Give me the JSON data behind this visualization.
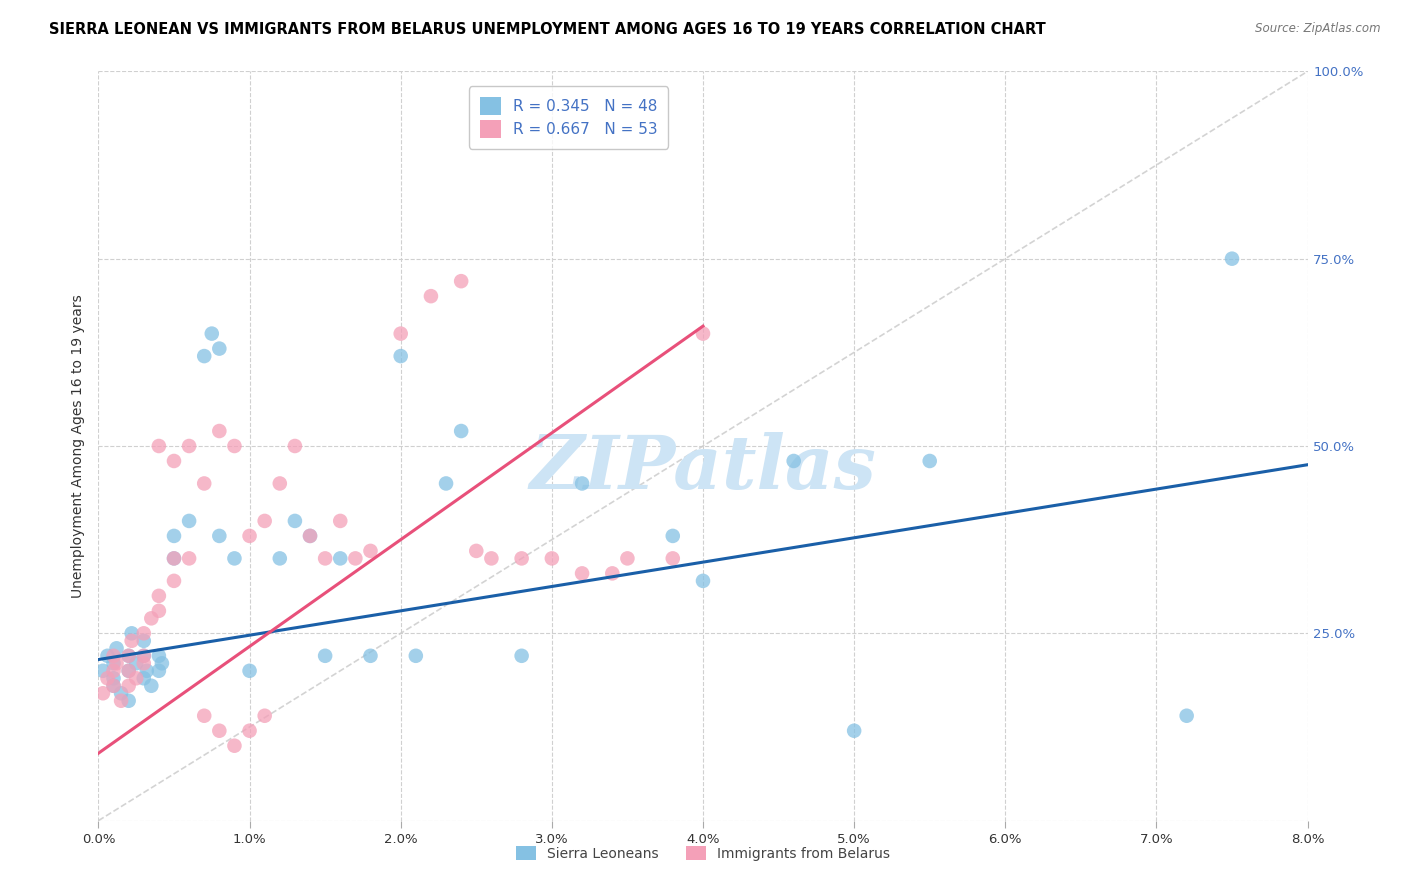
{
  "title": "SIERRA LEONEAN VS IMMIGRANTS FROM BELARUS UNEMPLOYMENT AMONG AGES 16 TO 19 YEARS CORRELATION CHART",
  "source": "Source: ZipAtlas.com",
  "ylabel": "Unemployment Among Ages 16 to 19 years",
  "xlim": [
    0.0,
    0.08
  ],
  "ylim": [
    0.0,
    1.0
  ],
  "xticks": [
    0.0,
    0.01,
    0.02,
    0.03,
    0.04,
    0.05,
    0.06,
    0.07,
    0.08
  ],
  "xticklabels": [
    "0.0%",
    "1.0%",
    "2.0%",
    "3.0%",
    "4.0%",
    "5.0%",
    "6.0%",
    "7.0%",
    "8.0%"
  ],
  "yticks": [
    0.0,
    0.25,
    0.5,
    0.75,
    1.0
  ],
  "yticklabels": [
    "",
    "25.0%",
    "50.0%",
    "75.0%",
    "100.0%"
  ],
  "legend_labels": [
    "Sierra Leoneans",
    "Immigrants from Belarus"
  ],
  "series1_R": 0.345,
  "series1_N": 48,
  "series2_R": 0.667,
  "series2_N": 53,
  "color_blue": "#85c1e3",
  "color_pink": "#f4a0b8",
  "line_blue": "#1a5fa8",
  "line_pink": "#e8507a",
  "line_diagonal": "#cccccc",
  "watermark": "ZIPatlas",
  "watermark_color": "#cde4f5",
  "title_fontsize": 10.5,
  "axis_label_fontsize": 10,
  "tick_fontsize": 9.5,
  "right_tick_color": "#4472c4",
  "blue_line_x": [
    0.0,
    0.08
  ],
  "blue_line_y": [
    0.215,
    0.475
  ],
  "pink_line_x": [
    0.0,
    0.04
  ],
  "pink_line_y": [
    0.09,
    0.66
  ],
  "sierra_x": [
    0.0003,
    0.0006,
    0.001,
    0.001,
    0.001,
    0.0012,
    0.0015,
    0.002,
    0.002,
    0.002,
    0.0022,
    0.0025,
    0.003,
    0.003,
    0.003,
    0.0032,
    0.0035,
    0.004,
    0.004,
    0.0042,
    0.005,
    0.005,
    0.006,
    0.007,
    0.0075,
    0.008,
    0.008,
    0.009,
    0.01,
    0.012,
    0.013,
    0.014,
    0.015,
    0.016,
    0.018,
    0.02,
    0.021,
    0.023,
    0.024,
    0.028,
    0.032,
    0.038,
    0.04,
    0.046,
    0.05,
    0.055,
    0.072,
    0.075
  ],
  "sierra_y": [
    0.2,
    0.22,
    0.18,
    0.21,
    0.19,
    0.23,
    0.17,
    0.22,
    0.2,
    0.16,
    0.25,
    0.21,
    0.19,
    0.22,
    0.24,
    0.2,
    0.18,
    0.22,
    0.2,
    0.21,
    0.38,
    0.35,
    0.4,
    0.62,
    0.65,
    0.63,
    0.38,
    0.35,
    0.2,
    0.35,
    0.4,
    0.38,
    0.22,
    0.35,
    0.22,
    0.62,
    0.22,
    0.45,
    0.52,
    0.22,
    0.45,
    0.38,
    0.32,
    0.48,
    0.12,
    0.48,
    0.14,
    0.75
  ],
  "belarus_x": [
    0.0003,
    0.0006,
    0.001,
    0.001,
    0.001,
    0.0012,
    0.0015,
    0.002,
    0.002,
    0.002,
    0.0022,
    0.0025,
    0.003,
    0.003,
    0.003,
    0.0035,
    0.004,
    0.004,
    0.005,
    0.005,
    0.006,
    0.007,
    0.008,
    0.009,
    0.01,
    0.011,
    0.012,
    0.013,
    0.014,
    0.015,
    0.016,
    0.017,
    0.018,
    0.02,
    0.022,
    0.024,
    0.025,
    0.026,
    0.028,
    0.03,
    0.032,
    0.034,
    0.035,
    0.038,
    0.04,
    0.004,
    0.005,
    0.006,
    0.007,
    0.008,
    0.009,
    0.01,
    0.011
  ],
  "belarus_y": [
    0.17,
    0.19,
    0.18,
    0.2,
    0.22,
    0.21,
    0.16,
    0.2,
    0.22,
    0.18,
    0.24,
    0.19,
    0.21,
    0.22,
    0.25,
    0.27,
    0.3,
    0.28,
    0.35,
    0.32,
    0.35,
    0.45,
    0.52,
    0.5,
    0.38,
    0.4,
    0.45,
    0.5,
    0.38,
    0.35,
    0.4,
    0.35,
    0.36,
    0.65,
    0.7,
    0.72,
    0.36,
    0.35,
    0.35,
    0.35,
    0.33,
    0.33,
    0.35,
    0.35,
    0.65,
    0.5,
    0.48,
    0.5,
    0.14,
    0.12,
    0.1,
    0.12,
    0.14
  ]
}
